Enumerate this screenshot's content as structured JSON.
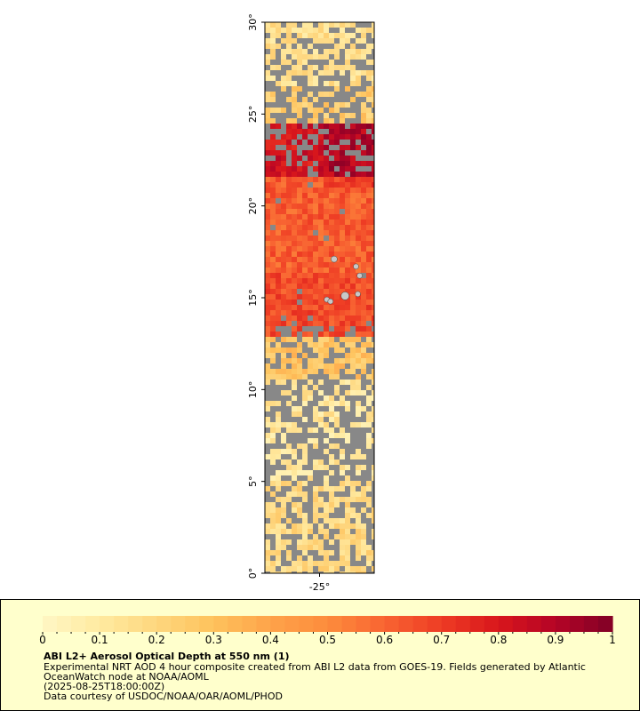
{
  "map": {
    "lat_labels": [
      "30°",
      "25°",
      "20°",
      "15°",
      "10°",
      "5°",
      "0°"
    ],
    "lat_values": [
      30,
      25,
      20,
      15,
      10,
      5,
      0
    ],
    "lon_labels": [
      "-25°"
    ],
    "lon_values": [
      -25
    ],
    "lat_range": [
      0,
      30
    ],
    "lon_range": [
      -28,
      -22
    ],
    "colors": {
      "no_data": "#888888",
      "land": "#c8c8c8"
    }
  },
  "colorbar": {
    "tick_labels": [
      "0",
      "0.1",
      "0.2",
      "0.3",
      "0.4",
      "0.5",
      "0.6",
      "0.7",
      "0.8",
      "0.9",
      "1"
    ],
    "min": 0,
    "max": 1,
    "palette": [
      "#fff7c4",
      "#ffeaa0",
      "#fed67e",
      "#fec25c",
      "#fea34a",
      "#fd8c3c",
      "#f86432",
      "#ee3c24",
      "#d8161c",
      "#b40426",
      "#800026"
    ]
  },
  "caption": {
    "title": "ABI L2+ Aerosol Optical Depth at 550 nm (1)",
    "line1": "Experimental NRT AOD 4 hour composite created from ABI L2 data from GOES-19. Fields generated by Atlantic",
    "line2": "OceanWatch node at NOAA/AOML",
    "line3": "(2025-08-25T18:00:00Z)",
    "line4": "Data courtesy of USDOC/NOAA/OAR/AOML/PHOD"
  },
  "aod_field": {
    "bands": [
      {
        "lat_from": 30,
        "lat_to": 26.5,
        "aod": 0.15
      },
      {
        "lat_from": 26.5,
        "lat_to": 24.5,
        "aod": 0.25
      },
      {
        "lat_from": 24.5,
        "lat_to": 21.5,
        "aod": 0.82
      },
      {
        "lat_from": 21.5,
        "lat_to": 16.5,
        "aod": 0.62
      },
      {
        "lat_from": 16.5,
        "lat_to": 13,
        "aod": 0.66
      },
      {
        "lat_from": 13,
        "lat_to": 10.5,
        "aod": 0.28
      },
      {
        "lat_from": 10.5,
        "lat_to": 5,
        "aod": 0.12
      },
      {
        "lat_from": 5,
        "lat_to": 0,
        "aod": 0.18
      }
    ]
  }
}
